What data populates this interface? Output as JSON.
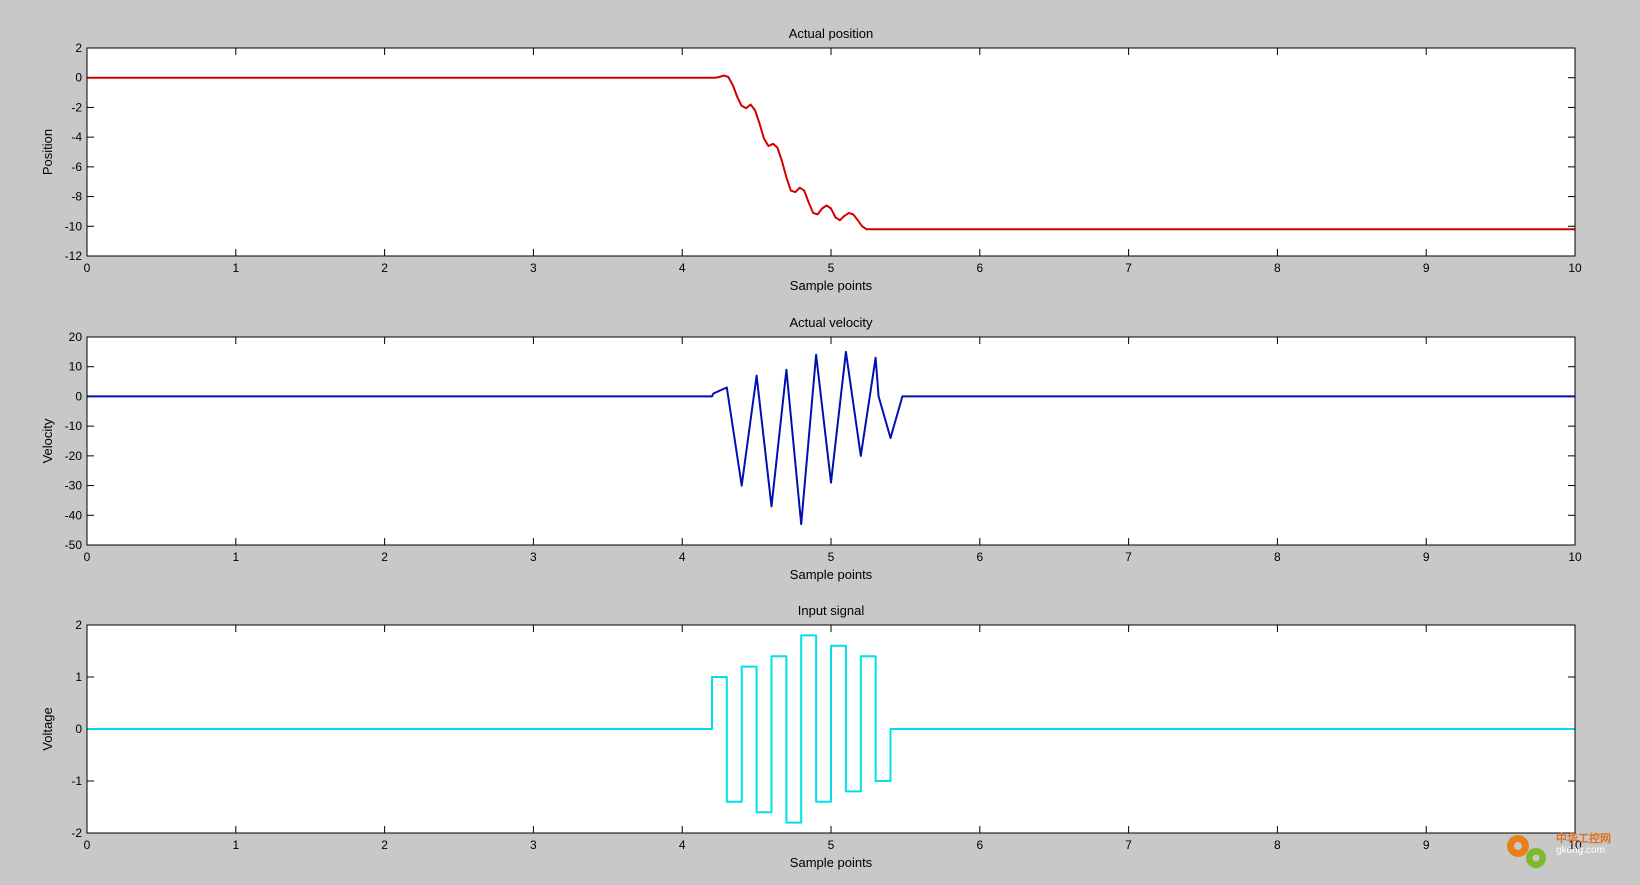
{
  "chart_data": [
    {
      "type": "line",
      "title": "Actual position",
      "xlabel": "Sample points",
      "ylabel": "Position",
      "xlim": [
        0,
        10
      ],
      "ylim": [
        -12,
        2
      ],
      "xticks": [
        0,
        1,
        2,
        3,
        4,
        5,
        6,
        7,
        8,
        9,
        10
      ],
      "yticks": [
        2,
        0,
        -2,
        -4,
        -6,
        -8,
        -10,
        -12
      ],
      "color": "#d40000",
      "grid": false,
      "series": [
        {
          "x": [
            0,
            4.22,
            4.25,
            4.28,
            4.31,
            4.34,
            4.37,
            4.4,
            4.43,
            4.46,
            4.49,
            4.52,
            4.55,
            4.58,
            4.61,
            4.64,
            4.67,
            4.7,
            4.73,
            4.76,
            4.79,
            4.82,
            4.85,
            4.88,
            4.91,
            4.94,
            4.97,
            5.0,
            5.03,
            5.06,
            5.09,
            5.12,
            5.15,
            5.18,
            5.21,
            5.24,
            5.27,
            5.3,
            5.33,
            5.36,
            5.39,
            5.42,
            5.45,
            5.48,
            10
          ],
          "y": [
            0,
            0,
            0.05,
            0.15,
            0.05,
            -0.5,
            -1.3,
            -1.9,
            -2.05,
            -1.8,
            -2.2,
            -3.1,
            -4.1,
            -4.6,
            -4.45,
            -4.7,
            -5.6,
            -6.7,
            -7.6,
            -7.7,
            -7.4,
            -7.6,
            -8.4,
            -9.1,
            -9.2,
            -8.8,
            -8.6,
            -8.8,
            -9.4,
            -9.6,
            -9.3,
            -9.1,
            -9.2,
            -9.6,
            -10.0,
            -10.2,
            -10.2,
            -10.2,
            -10.2,
            -10.2,
            -10.2,
            -10.2,
            -10.2,
            -10.2,
            -10.2
          ]
        }
      ]
    },
    {
      "type": "line",
      "title": "Actual velocity",
      "xlabel": "Sample points",
      "ylabel": "Velocity",
      "xlim": [
        0,
        10
      ],
      "ylim": [
        -50,
        20
      ],
      "xticks": [
        0,
        1,
        2,
        3,
        4,
        5,
        6,
        7,
        8,
        9,
        10
      ],
      "yticks": [
        20,
        10,
        0,
        -10,
        -20,
        -30,
        -40,
        -50
      ],
      "color": "#0010b0",
      "grid": false,
      "series": [
        {
          "x": [
            0,
            4.2,
            4.21,
            4.3,
            4.4,
            4.5,
            4.6,
            4.7,
            4.8,
            4.9,
            5.0,
            5.1,
            5.2,
            5.3,
            5.32,
            5.4,
            5.48,
            10
          ],
          "y": [
            0,
            0,
            1,
            3,
            -30,
            7,
            -37,
            9,
            -43,
            14,
            -29,
            15,
            -20,
            13,
            0,
            -14,
            0,
            0
          ]
        }
      ]
    },
    {
      "type": "line",
      "title": "Input signal",
      "xlabel": "Sample points",
      "ylabel": "Voltage",
      "xlim": [
        0,
        10
      ],
      "ylim": [
        -2,
        2
      ],
      "xticks": [
        0,
        1,
        2,
        3,
        4,
        5,
        6,
        7,
        8,
        9,
        10
      ],
      "yticks": [
        2,
        1,
        0,
        -1,
        -2
      ],
      "color": "#00e0e8",
      "grid": false,
      "series": [
        {
          "x": [
            0,
            4.2,
            4.2,
            4.3,
            4.3,
            4.4,
            4.4,
            4.5,
            4.5,
            4.6,
            4.6,
            4.7,
            4.7,
            4.8,
            4.8,
            4.9,
            4.9,
            5.0,
            5.0,
            5.1,
            5.1,
            5.2,
            5.2,
            5.3,
            5.3,
            5.4,
            5.4,
            10
          ],
          "y": [
            0,
            0,
            1.0,
            1.0,
            -1.4,
            -1.4,
            1.2,
            1.2,
            -1.6,
            -1.6,
            1.4,
            1.4,
            -1.8,
            -1.8,
            1.8,
            1.8,
            -1.4,
            -1.4,
            1.6,
            1.6,
            -1.2,
            -1.2,
            1.4,
            1.4,
            -1.0,
            -1.0,
            0,
            0
          ]
        }
      ]
    }
  ],
  "watermark": {
    "line1": "中华工控网",
    "line2": "gkong.com"
  }
}
